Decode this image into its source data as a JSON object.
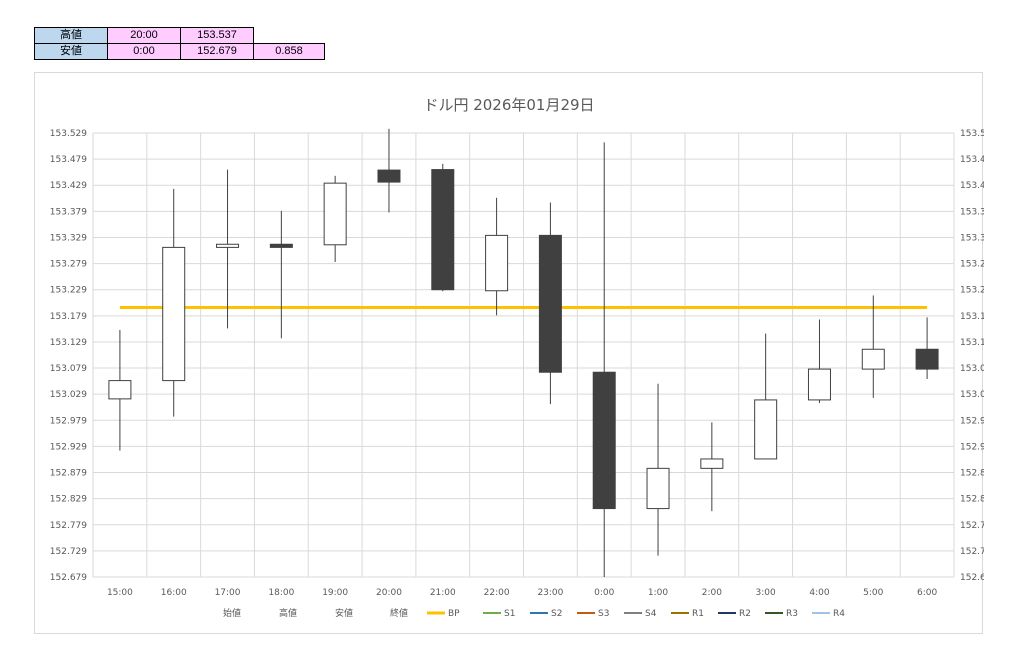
{
  "summary": {
    "rows": [
      {
        "label": "高値",
        "time": "20:00",
        "price": "153.537",
        "range": ""
      },
      {
        "label": "安値",
        "time": "0:00",
        "price": "152.679",
        "range": "0.858"
      }
    ]
  },
  "chart_data": {
    "type": "candlestick",
    "title": "ドル円 2026年01月29日",
    "categories": [
      "15:00",
      "16:00",
      "17:00",
      "18:00",
      "19:00",
      "20:00",
      "21:00",
      "22:00",
      "23:00",
      "0:00",
      "1:00",
      "2:00",
      "3:00",
      "4:00",
      "5:00",
      "6:00"
    ],
    "open": [
      153.02,
      153.055,
      153.31,
      153.316,
      153.315,
      153.458,
      153.459,
      153.227,
      153.333,
      153.071,
      152.81,
      152.887,
      152.905,
      153.018,
      153.077,
      153.115
    ],
    "high": [
      153.152,
      153.422,
      153.459,
      153.38,
      153.447,
      153.537,
      153.47,
      153.405,
      153.396,
      153.511,
      153.049,
      152.975,
      153.145,
      153.172,
      153.218,
      153.176
    ],
    "low": [
      152.921,
      152.986,
      153.155,
      153.136,
      153.282,
      153.377,
      153.226,
      153.18,
      153.01,
      152.679,
      152.72,
      152.805,
      152.905,
      153.012,
      153.022,
      153.058
    ],
    "close": [
      153.055,
      153.31,
      153.316,
      153.31,
      153.433,
      153.435,
      153.229,
      153.333,
      153.071,
      152.81,
      152.887,
      152.905,
      153.018,
      153.077,
      153.115,
      153.077
    ],
    "bp": 153.195,
    "ylim": [
      152.679,
      153.529
    ],
    "yticks": [
      "153.529",
      "153.479",
      "153.429",
      "153.379",
      "153.329",
      "153.279",
      "153.229",
      "153.179",
      "153.129",
      "153.079",
      "153.029",
      "152.979",
      "152.929",
      "152.879",
      "152.829",
      "152.779",
      "152.729",
      "152.679"
    ],
    "legend": [
      {
        "name": "始値",
        "color": ""
      },
      {
        "name": "高値",
        "color": ""
      },
      {
        "name": "安値",
        "color": ""
      },
      {
        "name": "終値",
        "color": ""
      },
      {
        "name": "BP",
        "color": "#ffc000"
      },
      {
        "name": "S1",
        "color": "#70ad47"
      },
      {
        "name": "S2",
        "color": "#2e75b6"
      },
      {
        "name": "S3",
        "color": "#c55a11"
      },
      {
        "name": "S4",
        "color": "#7f7f7f"
      },
      {
        "name": "R1",
        "color": "#997300"
      },
      {
        "name": "R2",
        "color": "#203864"
      },
      {
        "name": "R3",
        "color": "#375623"
      },
      {
        "name": "R4",
        "color": "#9dc3e6"
      }
    ],
    "grid": true,
    "legend_position": "bottom",
    "colors": {
      "up": "#ffffff",
      "down": "#404040",
      "outline": "#404040",
      "grid": "#d9d9d9",
      "bp": "#ffc000"
    }
  }
}
